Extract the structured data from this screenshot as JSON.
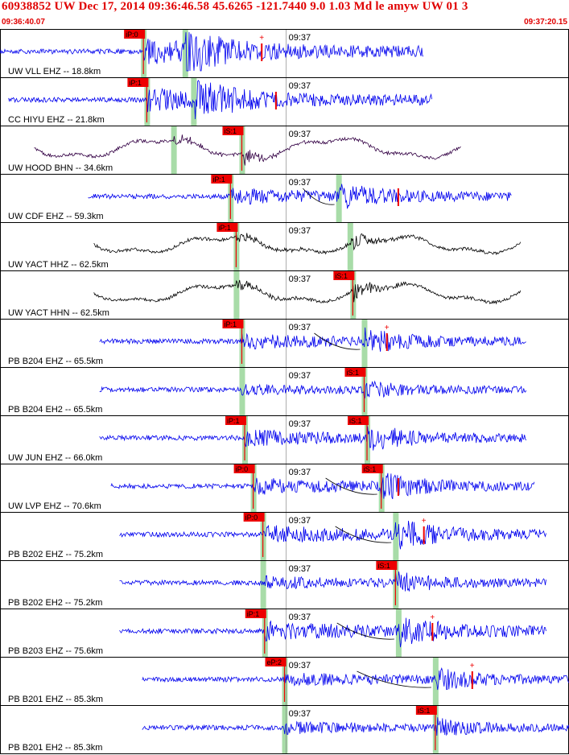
{
  "header": {
    "title": "60938852 UW Dec 17, 2014 09:36:46.58   45.6265 -121.7440  9.0 1.03 Md le amyw UW 01   3",
    "start_time": "09:36:40.07",
    "end_time": "09:37:20.15"
  },
  "colors": {
    "header_text": "#e00000",
    "pick_box": "#ee0000",
    "pick_line": "#ee0000",
    "shade": "#a8dca8",
    "trace_blue": "#0000ee",
    "trace_black": "#000000",
    "trace_purple": "#330044"
  },
  "chart_data": {
    "type": "seismogram",
    "time_start": "09:36:40.07",
    "time_end": "09:37:20.15",
    "minute_tick_label": "09:37",
    "traces": [
      {
        "label": "UW VLL EHZ -- 18.8km",
        "color": "blue",
        "style": "eq",
        "start": 0.0,
        "end": 0.745,
        "p_pick": "iP:0",
        "p_time": 0.252,
        "s_pick": null,
        "s_time": 0.325,
        "ampl": 1.0,
        "dropped": [
          0.46
        ],
        "plus_time": 0.46
      },
      {
        "label": "CC HIYU EHZ -- 21.8km",
        "color": "blue",
        "style": "eq",
        "start": 0.015,
        "end": 0.76,
        "p_pick": "iP:1",
        "p_time": 0.258,
        "s_pick": null,
        "s_time": 0.34,
        "ampl": 0.9,
        "dropped": [
          0.485
        ],
        "plus_time": null
      },
      {
        "label": "UW HOOD BHN -- 34.6km",
        "color": "purple",
        "style": "wave",
        "start": 0.06,
        "end": 0.81,
        "p_pick": null,
        "p_time": 0.305,
        "s_pick": "iS:1",
        "s_time": 0.425,
        "ampl": 0.6,
        "dropped": [],
        "plus_time": null
      },
      {
        "label": "UW CDF EHZ -- 59.3km",
        "color": "blue",
        "style": "eq",
        "start": 0.155,
        "end": 0.9,
        "p_pick": "iP:1",
        "p_time": 0.405,
        "s_pick": null,
        "s_time": 0.595,
        "ampl": 0.6,
        "dropped": [
          0.7
        ],
        "plus_time": null
      },
      {
        "label": "UW YACT HHZ -- 62.5km",
        "color": "black",
        "style": "wave",
        "start": 0.165,
        "end": 0.915,
        "p_pick": "iP:1",
        "p_time": 0.415,
        "s_pick": null,
        "s_time": 0.615,
        "ampl": 0.5,
        "dropped": [],
        "plus_time": null
      },
      {
        "label": "UW YACT HHN -- 62.5km",
        "color": "black",
        "style": "wave",
        "start": 0.165,
        "end": 0.915,
        "p_pick": null,
        "p_time": 0.415,
        "s_pick": "iS:1",
        "s_time": 0.62,
        "ampl": 0.55,
        "dropped": [],
        "plus_time": null
      },
      {
        "label": "PB B204 EHZ -- 65.5km",
        "color": "blue",
        "style": "eq",
        "start": 0.175,
        "end": 0.925,
        "p_pick": "iP:1",
        "p_time": 0.425,
        "s_pick": null,
        "s_time": 0.64,
        "ampl": 0.55,
        "dropped": [
          0.68
        ],
        "plus_time": 0.68
      },
      {
        "label": "PB B204 EH2 -- 65.5km",
        "color": "blue",
        "style": "eq",
        "start": 0.175,
        "end": 0.925,
        "p_pick": null,
        "p_time": 0.425,
        "s_pick": "iS:1",
        "s_time": 0.64,
        "ampl": 0.35,
        "dropped": [],
        "plus_time": null
      },
      {
        "label": "UW JUN EHZ -- 66.0km",
        "color": "blue",
        "style": "eq",
        "start": 0.175,
        "end": 0.925,
        "p_pick": "iP:1",
        "p_time": 0.43,
        "s_pick": "iS:1",
        "s_time": 0.645,
        "ampl": 0.6,
        "dropped": [],
        "plus_time": null
      },
      {
        "label": "UW LVP EHZ -- 70.6km",
        "color": "blue",
        "style": "eq",
        "start": 0.195,
        "end": 0.94,
        "p_pick": "iP:0",
        "p_time": 0.445,
        "s_pick": "iS:1",
        "s_time": 0.67,
        "ampl": 0.6,
        "dropped": [
          0.7
        ],
        "plus_time": null
      },
      {
        "label": "PB B202 EHZ -- 75.2km",
        "color": "blue",
        "style": "eq",
        "start": 0.21,
        "end": 0.96,
        "p_pick": "iP:0",
        "p_time": 0.462,
        "s_pick": null,
        "s_time": 0.695,
        "ampl": 0.7,
        "dropped": [
          0.745
        ],
        "plus_time": 0.745
      },
      {
        "label": "PB B202 EH2 -- 75.2km",
        "color": "blue",
        "style": "eq",
        "start": 0.21,
        "end": 0.96,
        "p_pick": null,
        "p_time": 0.462,
        "s_pick": "iS:1",
        "s_time": 0.695,
        "ampl": 0.45,
        "dropped": [],
        "plus_time": null
      },
      {
        "label": "PB B203 EHZ -- 75.6km",
        "color": "blue",
        "style": "eq",
        "start": 0.21,
        "end": 0.96,
        "p_pick": "iP:1",
        "p_time": 0.465,
        "s_pick": null,
        "s_time": 0.7,
        "ampl": 0.75,
        "dropped": [
          0.76
        ],
        "plus_time": 0.76
      },
      {
        "label": "PB B201 EHZ -- 85.3km",
        "color": "blue",
        "style": "eq",
        "start": 0.25,
        "end": 1.0,
        "p_pick": "eP:2",
        "p_time": 0.5,
        "s_pick": null,
        "s_time": 0.765,
        "ampl": 0.5,
        "dropped": [
          0.83
        ],
        "plus_time": 0.83
      },
      {
        "label": "PB B201 EH2 -- 85.3km",
        "color": "blue",
        "style": "eq",
        "start": 0.25,
        "end": 1.0,
        "p_pick": null,
        "p_time": 0.5,
        "s_pick": "iS:1",
        "s_time": 0.765,
        "ampl": 0.4,
        "dropped": [],
        "plus_time": null
      }
    ]
  }
}
